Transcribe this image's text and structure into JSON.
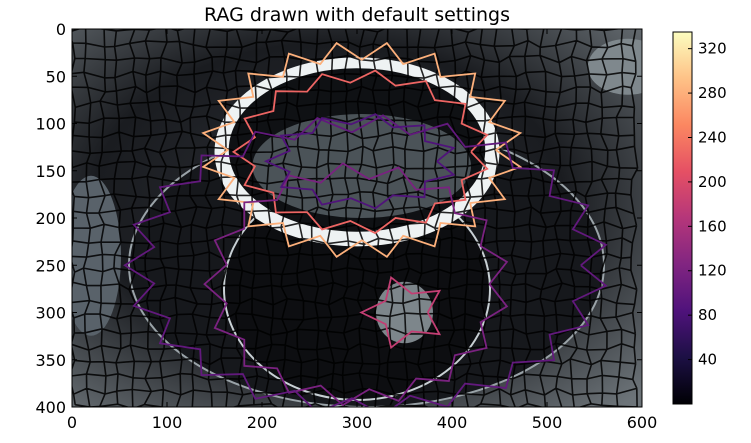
{
  "figure": {
    "title": "RAG drawn with default settings"
  },
  "chart_data": {
    "type": "image",
    "title": "RAG drawn with default settings",
    "xlabel": "",
    "ylabel": "",
    "xlim": [
      0,
      600
    ],
    "ylim": [
      400,
      0
    ],
    "xticks": [
      0,
      100,
      200,
      300,
      400,
      500,
      600
    ],
    "yticks": [
      0,
      50,
      100,
      150,
      200,
      250,
      300,
      350,
      400
    ],
    "grid": false,
    "colorbar": {
      "colormap": "magma",
      "range": [
        0,
        335
      ],
      "ticks": [
        40,
        80,
        120,
        160,
        200,
        240,
        280,
        320
      ],
      "colors": [
        "#000004",
        "#1c1044",
        "#4f127b",
        "#812581",
        "#b5367a",
        "#e55064",
        "#fb8761",
        "#fec287",
        "#fcfdbf"
      ]
    },
    "image_description_objects": [
      "cup",
      "saucer",
      "spoon"
    ]
  }
}
